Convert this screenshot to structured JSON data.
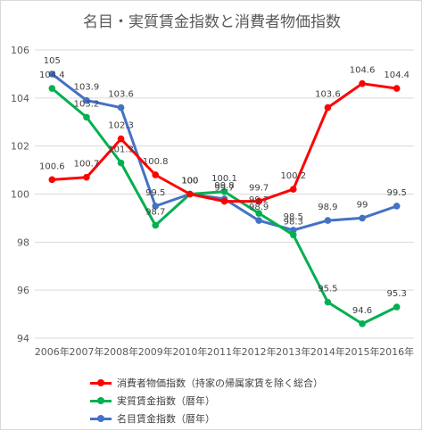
{
  "chart_data": {
    "type": "line",
    "title": "名目・実質賃金指数と消費者物価指数",
    "categories": [
      "2006年",
      "2007年",
      "2008年",
      "2009年",
      "2010年",
      "2011年",
      "2012年",
      "2013年",
      "2014年",
      "2015年",
      "2016年"
    ],
    "ylim": [
      94,
      106
    ],
    "yticks": [
      "94",
      "96",
      "98",
      "100",
      "102",
      "104",
      "106"
    ],
    "grid": true,
    "legend_position": "bottom",
    "series": [
      {
        "name": "消費者物価指数（持家の帰属家賃を除く総合）",
        "color": "#ff0000",
        "values": [
          100.6,
          100.7,
          102.3,
          100.8,
          100,
          99.7,
          99.7,
          100.2,
          103.6,
          104.6,
          104.4
        ],
        "labels": [
          "100.6",
          "100.7",
          "102.3",
          "100.8",
          "100",
          "99.7",
          "99.7",
          "100.2",
          "103.6",
          "104.6",
          "104.4"
        ]
      },
      {
        "name": "実質賃金指数（暦年）",
        "color": "#00b050",
        "values": [
          104.4,
          103.2,
          101.3,
          98.7,
          100,
          100.1,
          99.2,
          98.3,
          95.5,
          94.6,
          95.3
        ],
        "labels": [
          "104.4",
          "103.2",
          "101.3",
          "98.7",
          "100",
          "100.1",
          "99.2",
          "98.3",
          "95.5",
          "94.6",
          "95.3"
        ]
      },
      {
        "name": "名目賃金指数（暦年）",
        "color": "#4472c4",
        "values": [
          105,
          103.9,
          103.6,
          99.5,
          100,
          99.8,
          98.9,
          98.5,
          98.9,
          99,
          99.5
        ],
        "labels": [
          "105",
          "103.9",
          "103.6",
          "99.5",
          "100",
          "99.8",
          "98.9",
          "98.5",
          "98.9",
          "99",
          "99.5"
        ]
      }
    ]
  }
}
